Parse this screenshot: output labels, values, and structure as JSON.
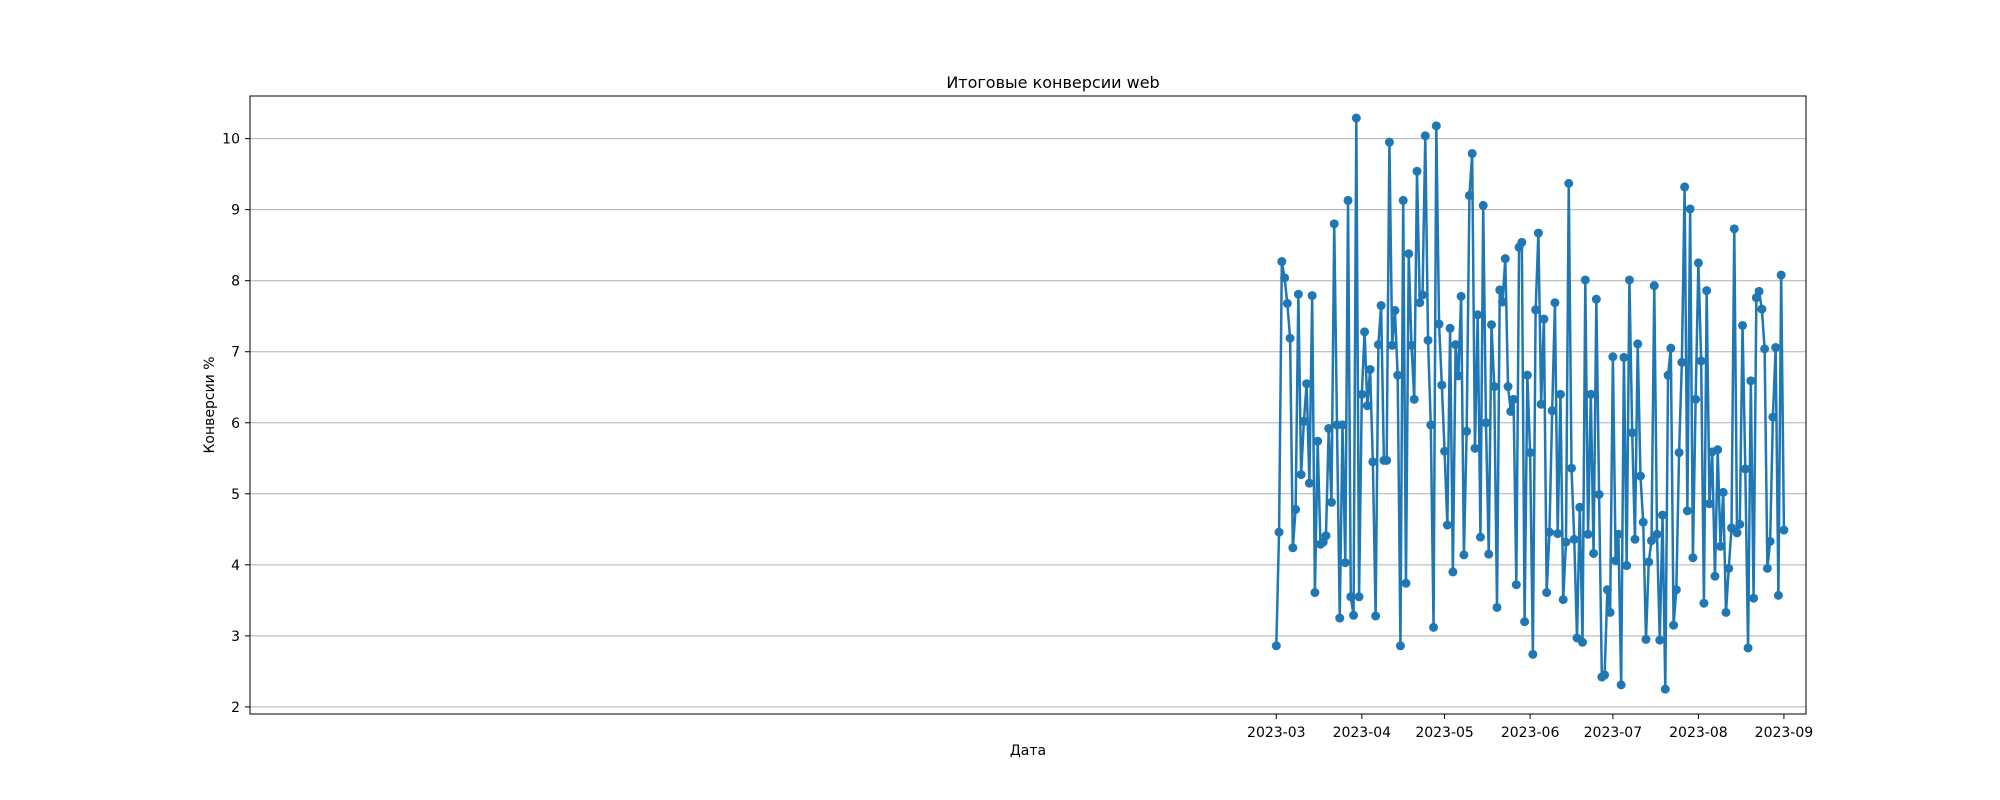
{
  "chart_data": {
    "type": "line",
    "title": "Итоговые конверсии web",
    "xlabel": "Дата",
    "ylabel": "Конверсии %",
    "x_axis_type": "date",
    "xlim": [
      "2022-02-22",
      "2023-09-09"
    ],
    "ylim": [
      1.9,
      10.6
    ],
    "x_ticks": [
      "2023-03-01",
      "2023-04-01",
      "2023-05-01",
      "2023-06-01",
      "2023-07-01",
      "2023-08-01",
      "2023-09-01"
    ],
    "x_tick_labels": [
      "2023-03",
      "2023-04",
      "2023-05",
      "2023-06",
      "2023-07",
      "2023-08",
      "2023-09"
    ],
    "y_ticks": [
      2,
      3,
      4,
      5,
      6,
      7,
      8,
      9,
      10
    ],
    "y_tick_labels": [
      "2",
      "3",
      "4",
      "5",
      "6",
      "7",
      "8",
      "9",
      "10"
    ],
    "grid": "y",
    "legend": "none",
    "series_color": "#1f77b4",
    "x": [
      "2023-03-01",
      "2023-03-02",
      "2023-03-03",
      "2023-03-04",
      "2023-03-05",
      "2023-03-06",
      "2023-03-07",
      "2023-03-08",
      "2023-03-09",
      "2023-03-10",
      "2023-03-11",
      "2023-03-12",
      "2023-03-13",
      "2023-03-14",
      "2023-03-15",
      "2023-03-16",
      "2023-03-17",
      "2023-03-18",
      "2023-03-19",
      "2023-03-20",
      "2023-03-21",
      "2023-03-22",
      "2023-03-23",
      "2023-03-24",
      "2023-03-25",
      "2023-03-26",
      "2023-03-27",
      "2023-03-28",
      "2023-03-29",
      "2023-03-30",
      "2023-03-31",
      "2023-04-01",
      "2023-04-02",
      "2023-04-03",
      "2023-04-04",
      "2023-04-05",
      "2023-04-06",
      "2023-04-07",
      "2023-04-08",
      "2023-04-09",
      "2023-04-10",
      "2023-04-11",
      "2023-04-12",
      "2023-04-13",
      "2023-04-14",
      "2023-04-15",
      "2023-04-16",
      "2023-04-17",
      "2023-04-18",
      "2023-04-19",
      "2023-04-20",
      "2023-04-21",
      "2023-04-22",
      "2023-04-23",
      "2023-04-24",
      "2023-04-25",
      "2023-04-26",
      "2023-04-27",
      "2023-04-28",
      "2023-04-29",
      "2023-04-30",
      "2023-05-01",
      "2023-05-02",
      "2023-05-03",
      "2023-05-04",
      "2023-05-05",
      "2023-05-06",
      "2023-05-07",
      "2023-05-08",
      "2023-05-09",
      "2023-05-10",
      "2023-05-11",
      "2023-05-12",
      "2023-05-13",
      "2023-05-14",
      "2023-05-15",
      "2023-05-16",
      "2023-05-17",
      "2023-05-18",
      "2023-05-19",
      "2023-05-20",
      "2023-05-21",
      "2023-05-22",
      "2023-05-23",
      "2023-05-24",
      "2023-05-25",
      "2023-05-26",
      "2023-05-27",
      "2023-05-28",
      "2023-05-29",
      "2023-05-30",
      "2023-05-31",
      "2023-06-01",
      "2023-06-02",
      "2023-06-03",
      "2023-06-04",
      "2023-06-05",
      "2023-06-06",
      "2023-06-07",
      "2023-06-08",
      "2023-06-09",
      "2023-06-10",
      "2023-06-11",
      "2023-06-12",
      "2023-06-13",
      "2023-06-14",
      "2023-06-15",
      "2023-06-16",
      "2023-06-17",
      "2023-06-18",
      "2023-06-19",
      "2023-06-20",
      "2023-06-21",
      "2023-06-22",
      "2023-06-23",
      "2023-06-24",
      "2023-06-25",
      "2023-06-26",
      "2023-06-27",
      "2023-06-28",
      "2023-06-29",
      "2023-06-30",
      "2023-07-01",
      "2023-07-02",
      "2023-07-03",
      "2023-07-04",
      "2023-07-05",
      "2023-07-06",
      "2023-07-07",
      "2023-07-08",
      "2023-07-09",
      "2023-07-10",
      "2023-07-11",
      "2023-07-12",
      "2023-07-13",
      "2023-07-14",
      "2023-07-15",
      "2023-07-16",
      "2023-07-17",
      "2023-07-18",
      "2023-07-19",
      "2023-07-20",
      "2023-07-21",
      "2023-07-22",
      "2023-07-23",
      "2023-07-24",
      "2023-07-25",
      "2023-07-26",
      "2023-07-27",
      "2023-07-28",
      "2023-07-29",
      "2023-07-30",
      "2023-07-31",
      "2023-08-01",
      "2023-08-02",
      "2023-08-03",
      "2023-08-04",
      "2023-08-05",
      "2023-08-06",
      "2023-08-07",
      "2023-08-08",
      "2023-08-09",
      "2023-08-10",
      "2023-08-11",
      "2023-08-12",
      "2023-08-13",
      "2023-08-14",
      "2023-08-15",
      "2023-08-16",
      "2023-08-17",
      "2023-08-18",
      "2023-08-19",
      "2023-08-20",
      "2023-08-21",
      "2023-08-22",
      "2023-08-23",
      "2023-08-24",
      "2023-08-25",
      "2023-08-26",
      "2023-08-27",
      "2023-08-28",
      "2023-08-29",
      "2023-08-30",
      "2023-08-31",
      "2023-09-01"
    ],
    "values": [
      2.86,
      4.46,
      8.27,
      8.04,
      7.68,
      7.19,
      4.24,
      4.78,
      7.81,
      5.27,
      6.02,
      6.55,
      5.15,
      7.79,
      3.61,
      5.74,
      4.29,
      4.32,
      4.41,
      5.92,
      4.88,
      8.8,
      5.97,
      3.25,
      5.97,
      4.03,
      9.13,
      3.55,
      3.29,
      10.29,
      3.55,
      6.4,
      7.28,
      6.24,
      6.75,
      5.45,
      3.28,
      7.1,
      7.65,
      5.47,
      5.47,
      9.95,
      7.09,
      7.58,
      6.67,
      2.86,
      9.13,
      3.74,
      8.38,
      7.09,
      6.33,
      9.54,
      7.69,
      7.8,
      10.04,
      7.16,
      5.97,
      3.12,
      10.18,
      7.39,
      6.53,
      5.6,
      4.56,
      7.33,
      3.9,
      7.1,
      6.66,
      7.78,
      4.14,
      5.88,
      9.2,
      9.79,
      5.64,
      7.52,
      4.39,
      9.06,
      6.0,
      4.15,
      7.38,
      6.51,
      3.4,
      7.87,
      7.7,
      8.31,
      6.51,
      6.16,
      6.33,
      3.72,
      8.47,
      8.54,
      3.2,
      6.67,
      5.58,
      2.74,
      7.59,
      8.67,
      6.26,
      7.46,
      3.61,
      4.46,
      6.17,
      7.69,
      4.44,
      6.4,
      3.51,
      4.32,
      9.37,
      5.36,
      4.36,
      2.97,
      4.81,
      2.91,
      8.01,
      4.43,
      6.4,
      4.16,
      7.74,
      4.99,
      2.42,
      2.45,
      3.65,
      3.33,
      6.93,
      4.06,
      4.43,
      2.31,
      6.92,
      3.99,
      8.01,
      5.86,
      4.36,
      7.11,
      5.25,
      4.6,
      2.95,
      4.04,
      4.34,
      7.93,
      4.43,
      2.94,
      4.7,
      2.25,
      6.67,
      7.05,
      3.15,
      3.65,
      5.58,
      6.85,
      9.32,
      4.76,
      9.01,
      4.1,
      6.33,
      8.25,
      6.87,
      3.46,
      7.86,
      4.86,
      5.59,
      3.84,
      5.62,
      4.26,
      5.02,
      3.33,
      3.95,
      4.52,
      8.73,
      4.45,
      4.57,
      7.37,
      5.35,
      2.83,
      6.59,
      3.53,
      7.76,
      7.85,
      7.6,
      7.04,
      3.95,
      4.33,
      6.08,
      7.06,
      3.57,
      8.08,
      4.49
    ]
  }
}
